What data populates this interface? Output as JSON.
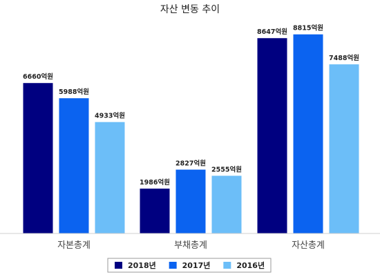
{
  "chart_data": {
    "type": "bar",
    "title": "자산 변동 추이",
    "categories": [
      "자본총계",
      "부채총계",
      "자산총계"
    ],
    "series": [
      {
        "name": "2018년",
        "values": [
          6660,
          1986,
          8647
        ],
        "color": "#000080"
      },
      {
        "name": "2017년",
        "values": [
          5988,
          2827,
          8815
        ],
        "color": "#0b63f0"
      },
      {
        "name": "2016년",
        "values": [
          4933,
          2555,
          7488
        ],
        "color": "#6cbef8"
      }
    ],
    "value_suffix": "억원",
    "ylim": [
      0,
      10000
    ],
    "grid": false,
    "legend_position": "bottom-center"
  }
}
